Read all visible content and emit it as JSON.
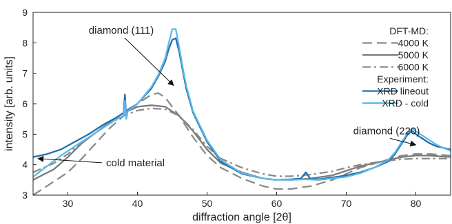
{
  "chart_data": {
    "type": "line",
    "xlabel": "diffraction angle [2θ]",
    "ylabel": "intensity [arb. units]",
    "xlim": [
      25,
      85
    ],
    "ylim": [
      3,
      9
    ],
    "xticks": [
      30,
      40,
      50,
      60,
      70,
      80
    ],
    "yticks": [
      3,
      4,
      5,
      6,
      7,
      8,
      9
    ],
    "grid": false,
    "legend_position": "top-right",
    "legend_groups": [
      {
        "header": "DFT-MD:",
        "series": [
          "4000 K",
          "5000 K",
          "6000 K"
        ]
      },
      {
        "header": "Experiment:",
        "series": [
          "XRD lineout",
          "XRD - cold"
        ]
      }
    ],
    "series": [
      {
        "name": "4000 K",
        "color": "#8a8a8a",
        "dash": "dashed",
        "x": [
          25,
          28,
          30,
          32,
          34,
          36,
          38,
          40,
          42,
          43,
          44,
          46,
          48,
          50,
          52,
          55,
          58,
          60,
          62,
          65,
          68,
          70,
          72,
          75,
          78,
          80,
          82,
          85
        ],
        "y": [
          3.0,
          3.45,
          3.75,
          4.2,
          4.7,
          5.2,
          5.6,
          6.0,
          6.3,
          6.35,
          6.2,
          5.6,
          4.9,
          4.3,
          3.9,
          3.55,
          3.3,
          3.2,
          3.2,
          3.3,
          3.5,
          3.7,
          3.9,
          4.1,
          4.3,
          4.35,
          4.35,
          4.3
        ]
      },
      {
        "name": "5000 K",
        "color": "#7a7a7a",
        "dash": "solid",
        "x": [
          25,
          28,
          30,
          32,
          34,
          36,
          38,
          40,
          42,
          44,
          46,
          48,
          50,
          52,
          55,
          58,
          60,
          62,
          65,
          68,
          70,
          72,
          75,
          78,
          80,
          82,
          85
        ],
        "y": [
          3.5,
          3.85,
          4.25,
          4.7,
          5.05,
          5.4,
          5.7,
          5.9,
          5.95,
          5.9,
          5.6,
          5.1,
          4.5,
          4.05,
          3.75,
          3.55,
          3.5,
          3.5,
          3.55,
          3.65,
          3.8,
          3.95,
          4.1,
          4.25,
          4.3,
          4.3,
          4.25
        ]
      },
      {
        "name": "6000 K",
        "color": "#8a8a8a",
        "dash": "dashdot",
        "x": [
          25,
          28,
          30,
          32,
          34,
          36,
          38,
          40,
          42,
          44,
          46,
          48,
          50,
          52,
          55,
          58,
          60,
          62,
          65,
          68,
          70,
          72,
          75,
          78,
          80,
          82,
          85
        ],
        "y": [
          3.75,
          4.05,
          4.35,
          4.75,
          5.05,
          5.35,
          5.6,
          5.78,
          5.85,
          5.82,
          5.6,
          5.15,
          4.6,
          4.2,
          3.9,
          3.7,
          3.62,
          3.62,
          3.68,
          3.78,
          3.9,
          4.0,
          4.1,
          4.18,
          4.2,
          4.2,
          4.2
        ]
      },
      {
        "name": "XRD lineout",
        "color": "#1f6fb0",
        "dash": "solid",
        "x": [
          25,
          27,
          29,
          31,
          33,
          35,
          37,
          38,
          38.2,
          38.4,
          38.6,
          40,
          42,
          43,
          44,
          44.5,
          45,
          45.5,
          46,
          46.5,
          47,
          48,
          50,
          52,
          55,
          58,
          60,
          62,
          63.5,
          64.2,
          64.8,
          66,
          68,
          70,
          72,
          74,
          76,
          77,
          78,
          79,
          79.5,
          80,
          81,
          82,
          83,
          84,
          85
        ],
        "y": [
          4.25,
          4.35,
          4.5,
          4.75,
          5.0,
          5.3,
          5.55,
          5.7,
          6.3,
          5.6,
          5.8,
          6.0,
          6.5,
          6.9,
          7.4,
          7.8,
          8.1,
          8.15,
          7.7,
          7.1,
          6.5,
          5.7,
          4.75,
          4.1,
          3.7,
          3.55,
          3.5,
          3.52,
          3.55,
          3.75,
          3.55,
          3.52,
          3.58,
          3.65,
          3.75,
          3.9,
          4.1,
          4.35,
          4.7,
          5.05,
          5.1,
          5.0,
          4.85,
          4.7,
          4.6,
          4.55,
          4.5
        ]
      },
      {
        "name": "XRD - cold",
        "color": "#5bb8e6",
        "dash": "solid",
        "x": [
          25,
          27,
          29,
          31,
          33,
          35,
          37,
          38,
          38.2,
          38.4,
          38.6,
          40,
          42,
          43,
          44,
          44.5,
          45,
          45.5,
          46,
          46.5,
          47,
          48,
          50,
          52,
          55,
          58,
          60,
          62,
          64,
          66,
          68,
          70,
          72,
          74,
          76,
          77,
          78,
          79,
          79.5,
          80,
          81,
          82,
          83,
          84,
          85
        ],
        "y": [
          3.6,
          3.95,
          4.3,
          4.6,
          4.9,
          5.2,
          5.5,
          5.6,
          6.1,
          5.5,
          5.75,
          6.0,
          6.55,
          6.95,
          7.5,
          8.0,
          8.45,
          8.45,
          7.85,
          7.2,
          6.6,
          5.75,
          4.8,
          4.15,
          3.72,
          3.55,
          3.5,
          3.5,
          3.52,
          3.5,
          3.55,
          3.6,
          3.72,
          3.9,
          4.15,
          4.4,
          4.75,
          5.1,
          5.2,
          5.1,
          4.95,
          4.8,
          4.65,
          4.55,
          4.45
        ]
      }
    ],
    "annotations": [
      {
        "text": "diamond (111)",
        "text_x": 33.0,
        "text_y": 8.3,
        "arrow_to_x": 45.2,
        "arrow_to_y": 6.6
      },
      {
        "text": "diamond (220)",
        "text_x": 71.0,
        "text_y": 5.0,
        "arrow_to_x": 80.0,
        "arrow_to_y": 4.65
      },
      {
        "text": "cold material",
        "text_x": 35.5,
        "text_y": 3.95,
        "arrow_to_x": 25.7,
        "arrow_to_y": 4.2
      }
    ]
  }
}
